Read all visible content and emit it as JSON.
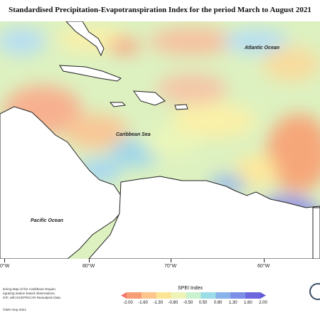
{
  "title": "Standardised Precipitation-Evapotranspiration Index for the period March to August 2021",
  "labels": {
    "atlantic": "Atlantic Ocean",
    "caribbean": "Caribbean Sea",
    "pacific": "Pacific Ocean"
  },
  "longitudes": [
    "0°W",
    "80°W",
    "70°W",
    "60°W"
  ],
  "footnote": [
    "itoring Map of the Caribbean Region.",
    "egrating station based observations,",
    "IOF, with NCEP/NCAR Reanalysis Data"
  ],
  "copyright": "©IMH Sep-2021",
  "legend": {
    "title": "SPEI Index",
    "ticks": [
      "-2.00",
      "-1.60",
      "-1.30",
      "-0.80",
      "-0.50",
      "0.50",
      "0.80",
      "1.30",
      "1.60",
      "2.00"
    ],
    "colors": [
      "#f4756b",
      "#f79d76",
      "#fbc58c",
      "#fbe494",
      "#eef4b6",
      "#c9f2cf",
      "#9adde6",
      "#8ab2ea",
      "#7c8ee8",
      "#6d67df",
      "#6259d8"
    ]
  }
}
